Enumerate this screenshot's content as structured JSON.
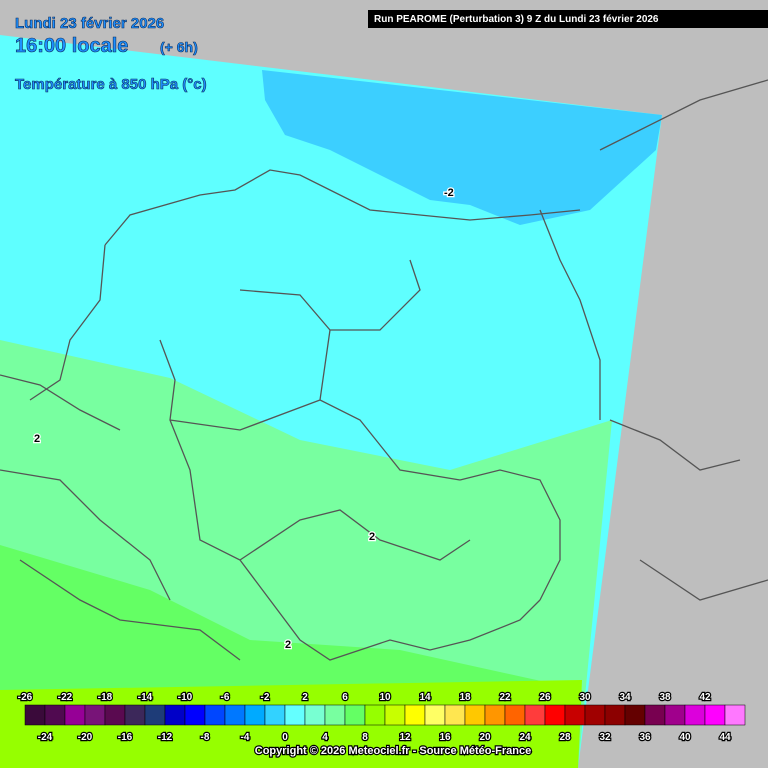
{
  "header": {
    "date": "Lundi 23 février 2026",
    "time": "16:00 locale",
    "offset": "(+ 6h)",
    "variable": "Température à 850 hPa (°c)"
  },
  "run_banner": "Run PEAROME (Perturbation 3) 9 Z du Lundi 23 février 2026",
  "contour_labels": [
    "-2",
    "2",
    "2",
    "2"
  ],
  "legend": {
    "steps": [
      -26,
      -24,
      -22,
      -20,
      -18,
      -16,
      -14,
      -12,
      -10,
      -8,
      -6,
      -4,
      -2,
      0,
      2,
      4,
      6,
      8,
      10,
      12,
      14,
      16,
      18,
      20,
      22,
      24,
      26,
      28,
      30,
      32,
      34,
      36,
      38,
      40,
      42,
      44
    ],
    "colors": [
      "#3a0a3a",
      "#500a50",
      "#960096",
      "#781478",
      "#5a0a50",
      "#3c285a",
      "#1e3c78",
      "#0000c8",
      "#0000ff",
      "#0046ff",
      "#0078ff",
      "#00aaff",
      "#32d2ff",
      "#64ffff",
      "#78ffd2",
      "#78ffa0",
      "#64ff64",
      "#96ff00",
      "#c8ff00",
      "#ffff00",
      "#ffff64",
      "#ffe650",
      "#ffc800",
      "#ff9600",
      "#ff6400",
      "#ff3c3c",
      "#ff0000",
      "#c80000",
      "#a00000",
      "#8c0000",
      "#640000",
      "#780050",
      "#a0008c",
      "#dc00dc",
      "#ff00ff",
      "#ff78ff"
    ]
  },
  "copyright": "Copyright © 2026 Meteociel.fr - Source Météo-France"
}
